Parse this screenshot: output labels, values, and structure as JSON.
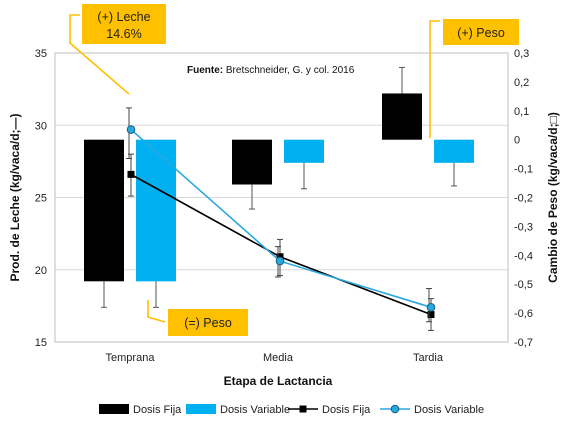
{
  "chart_data": {
    "type": "bar",
    "xlabel": "Etapa de Lactancia",
    "ylabel_left": "Prod. de Leche (kg/vaca/d;—)",
    "ylabel_right": "Cambio de Peso (kg/vaca/d;□)",
    "source_label": "Fuente:",
    "source_text": "Bretschneider,  G. y col. 2016",
    "categories": [
      "Temprana",
      "Media",
      "Tardia"
    ],
    "y_left_lim": [
      15,
      35
    ],
    "y_left_ticks": [
      "15",
      "20",
      "25",
      "30",
      "35"
    ],
    "y_right_lim": [
      -0.7,
      0.3
    ],
    "y_right_ticks": [
      "-0,7",
      "-0,6",
      "-0,5",
      "-0,4",
      "-0,3",
      "-0,2",
      "-0,1",
      "0",
      "0,1",
      "0,2",
      "0,3"
    ],
    "bars_axis": "right",
    "bar_series": [
      {
        "name": "Dosis Fija",
        "color": "#000000",
        "values": [
          -0.49,
          -0.155,
          0.16
        ],
        "err_end": [
          -0.58,
          -0.24,
          0.25
        ]
      },
      {
        "name": "Dosis Variable",
        "color": "#00b0f0",
        "values": [
          -0.49,
          -0.08,
          -0.08
        ],
        "err_end": [
          -0.58,
          -0.17,
          -0.16
        ]
      }
    ],
    "line_axis": "left",
    "line_series": [
      {
        "name": "Dosis Fija",
        "color": "#000000",
        "marker": "square",
        "values": [
          26.6,
          20.9,
          16.9
        ],
        "err_low": [
          25.1,
          19.6,
          15.8
        ],
        "err_high": [
          28.0,
          22.1,
          18.0
        ]
      },
      {
        "name": "Dosis Variable",
        "color": "#29a8e0",
        "marker": "circle",
        "values": [
          29.7,
          20.6,
          17.4
        ],
        "err_low": [
          27.7,
          19.5,
          16.4
        ],
        "err_high": [
          31.2,
          21.6,
          18.7
        ]
      }
    ],
    "legend_position": "bottom",
    "annotations": [
      {
        "line1": "(+) Leche",
        "line2": "14.6%"
      },
      {
        "line1": "(+) Peso"
      },
      {
        "line1": "(=) Peso"
      }
    ]
  },
  "colors": {
    "callout_bg": "#ffc000",
    "callout_line": "#ffc000",
    "bar_black": "#000000",
    "bar_blue": "#00b0f0",
    "line_blue": "#29a8e0"
  }
}
